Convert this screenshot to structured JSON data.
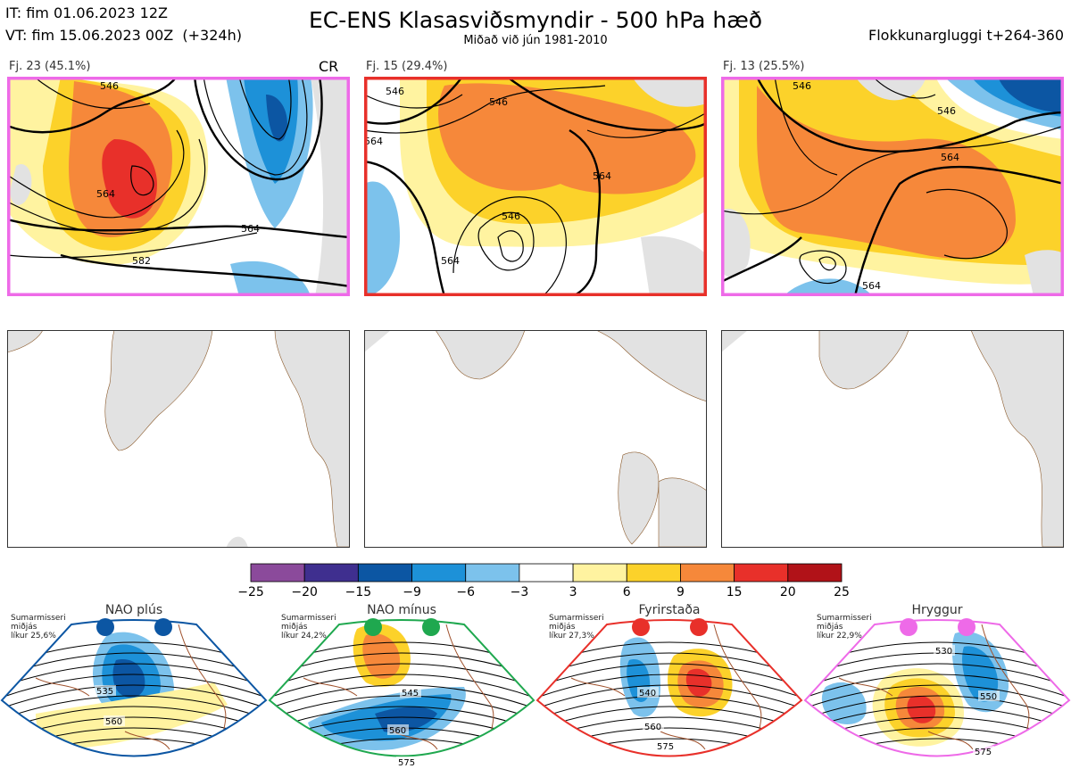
{
  "header": {
    "it": "IT: fim 01.06.2023 12Z",
    "vt": "VT: fim 15.06.2023 00Z  (+324h)",
    "title": "EC-ENS Klasasviðsmyndir - 500 hPa hæð",
    "subtitle": "Miðað við jún 1981-2010",
    "window": "Flokkunargluggi t+264-360"
  },
  "clusters": [
    {
      "label": "Fj. 23 (45.1%)",
      "tag": "CR",
      "regime": "Hryggur",
      "frame_color": "#ee6ae8",
      "contour_labels": [
        "546",
        "564",
        "564",
        "582"
      ]
    },
    {
      "label": "Fj. 15 (29.4%)",
      "tag": "",
      "regime": "Fyrirstaða",
      "frame_color": "#e8302a",
      "contour_labels": [
        "546",
        "546",
        "564",
        "546",
        "564",
        "564"
      ]
    },
    {
      "label": "Fj. 13 (25.5%)",
      "tag": "",
      "regime": "Hryggur",
      "frame_color": "#ee6ae8",
      "contour_labels": [
        "546",
        "564",
        "546",
        "564"
      ]
    }
  ],
  "colorbar": {
    "ticks": [
      "−25",
      "−20",
      "−15",
      "−9",
      "−6",
      "−3",
      "3",
      "6",
      "9",
      "15",
      "20",
      "25"
    ],
    "colors": [
      "#8b4a9b",
      "#3f2f8f",
      "#0c56a3",
      "#1d91d8",
      "#7cc2ec",
      "#ffffff",
      "#fff3a0",
      "#fcd22a",
      "#f6883a",
      "#e8302a",
      "#b11218"
    ]
  },
  "regimes": [
    {
      "name": "NAO plús",
      "season": "Sumarmisseri",
      "mean": "miðjás",
      "prob": "líkur 25,6%",
      "color": "#0c56a3",
      "contours": [
        "535",
        "560"
      ]
    },
    {
      "name": "NAO mínus",
      "season": "Sumarmisseri",
      "mean": "miðjás",
      "prob": "líkur 24,2%",
      "color": "#1fa84f",
      "contours": [
        "545",
        "560",
        "575"
      ]
    },
    {
      "name": "Fyrirstaða",
      "season": "Sumarmisseri",
      "mean": "miðjás",
      "prob": "líkur 27,3%",
      "color": "#e8302a",
      "contours": [
        "540",
        "560",
        "575"
      ]
    },
    {
      "name": "Hryggur",
      "season": "Sumarmisseri",
      "mean": "miðjás",
      "prob": "líkur 22,9%",
      "color": "#ee6ae8",
      "contours": [
        "530",
        "550",
        "575"
      ]
    }
  ]
}
